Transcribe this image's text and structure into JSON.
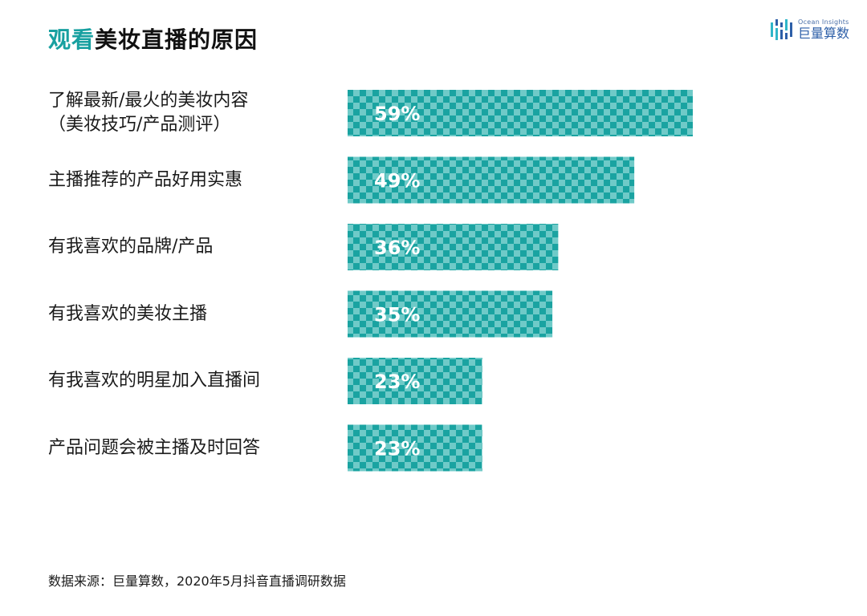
{
  "title": {
    "accent": "观看",
    "rest": "美妆直播的原因"
  },
  "logo": {
    "en": "Ocean Insights",
    "cn": "巨量算数",
    "icon": "ocean-insights-logo-icon"
  },
  "source": "数据来源：巨量算数，2020年5月抖音直播调研数据",
  "colors": {
    "bar_light": "#6fcac8",
    "bar_dark": "#1aa3a1",
    "accent": "#17a0a0"
  },
  "chart_data": {
    "type": "bar",
    "orientation": "horizontal",
    "categories": [
      [
        "了解最新/最火的美妆内容",
        "（美妆技巧/产品测评）"
      ],
      [
        "主播推荐的产品好用实惠"
      ],
      [
        "有我喜欢的品牌/产品"
      ],
      [
        "有我喜欢的美妆主播"
      ],
      [
        "有我喜欢的明星加入直播间"
      ],
      [
        "产品问题会被主播及时回答"
      ]
    ],
    "values": [
      59,
      49,
      36,
      35,
      23,
      23
    ],
    "value_labels": [
      "59%",
      "49%",
      "36%",
      "35%",
      "23%",
      "23%"
    ],
    "unit": "%",
    "xlim": [
      0,
      100
    ],
    "grid": false,
    "legend": "none"
  }
}
